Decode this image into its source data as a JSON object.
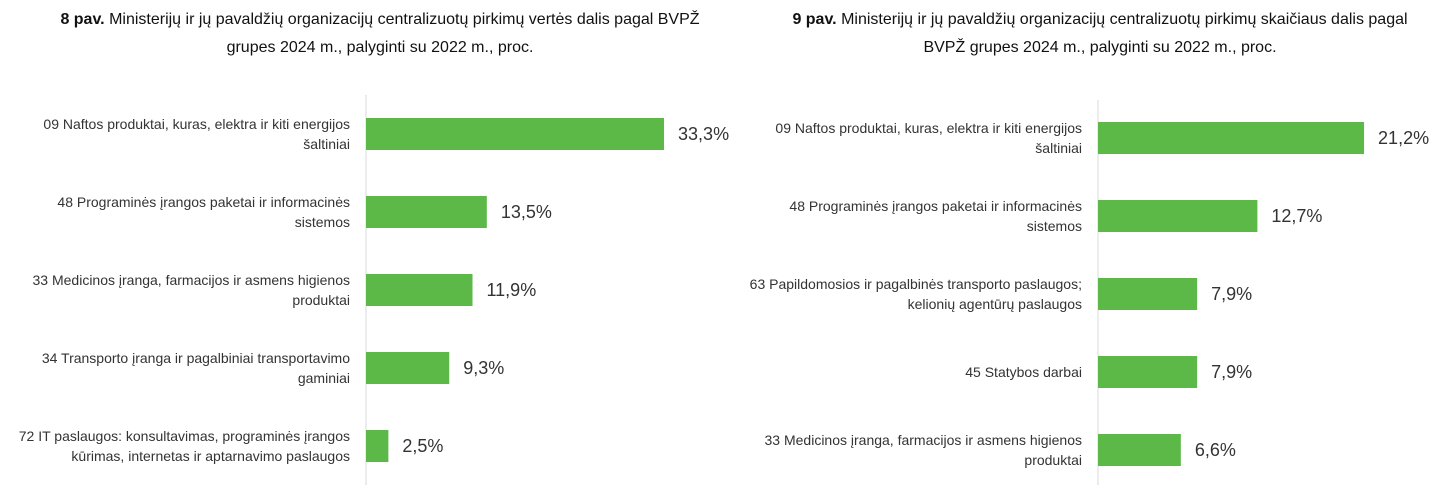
{
  "chart_data": [
    {
      "type": "barh",
      "figure_label": "8 pav.",
      "title": "Ministerijų ir jų pavaldžių organizacijų centralizuotų pirkimų vertės dalis pagal BVPŽ grupes 2024 m., palyginti su 2022 m., proc.",
      "categories": [
        "09 Naftos produktai, kuras, elektra ir kiti energijos šaltiniai",
        "48 Programinės įrangos paketai ir informacinės sistemos",
        "33 Medicinos įranga, farmacijos ir asmens higienos produktai",
        "34 Transporto įranga ir pagalbiniai transportavimo gaminiai",
        "72 IT paslaugos: konsultavimas, programinės įrangos kūrimas, internetas ir aptarnavimo paslaugos"
      ],
      "values": [
        33.3,
        13.5,
        11.9,
        9.3,
        2.5
      ],
      "value_labels": [
        "33,3%",
        "13,5%",
        "11,9%",
        "9,3%",
        "2,5%"
      ],
      "color": "#5cb947"
    },
    {
      "type": "barh",
      "figure_label": "9 pav.",
      "title": "Ministerijų ir jų pavaldžių organizacijų centralizuotų pirkimų skaičiaus dalis pagal BVPŽ grupes 2024 m., palyginti su 2022 m., proc.",
      "categories": [
        "09 Naftos produktai, kuras, elektra ir kiti energijos šaltiniai",
        "48 Programinės įrangos paketai ir informacinės sistemos",
        "63 Papildomosios ir pagalbinės transporto paslaugos; kelionių agentūrų paslaugos",
        "45 Statybos darbai",
        "33 Medicinos įranga, farmacijos ir asmens higienos produktai"
      ],
      "values": [
        21.2,
        12.7,
        7.9,
        7.9,
        6.6
      ],
      "value_labels": [
        "21,2%",
        "12,7%",
        "7,9%",
        "7,9%",
        "6,6%"
      ],
      "color": "#5cb947"
    }
  ]
}
